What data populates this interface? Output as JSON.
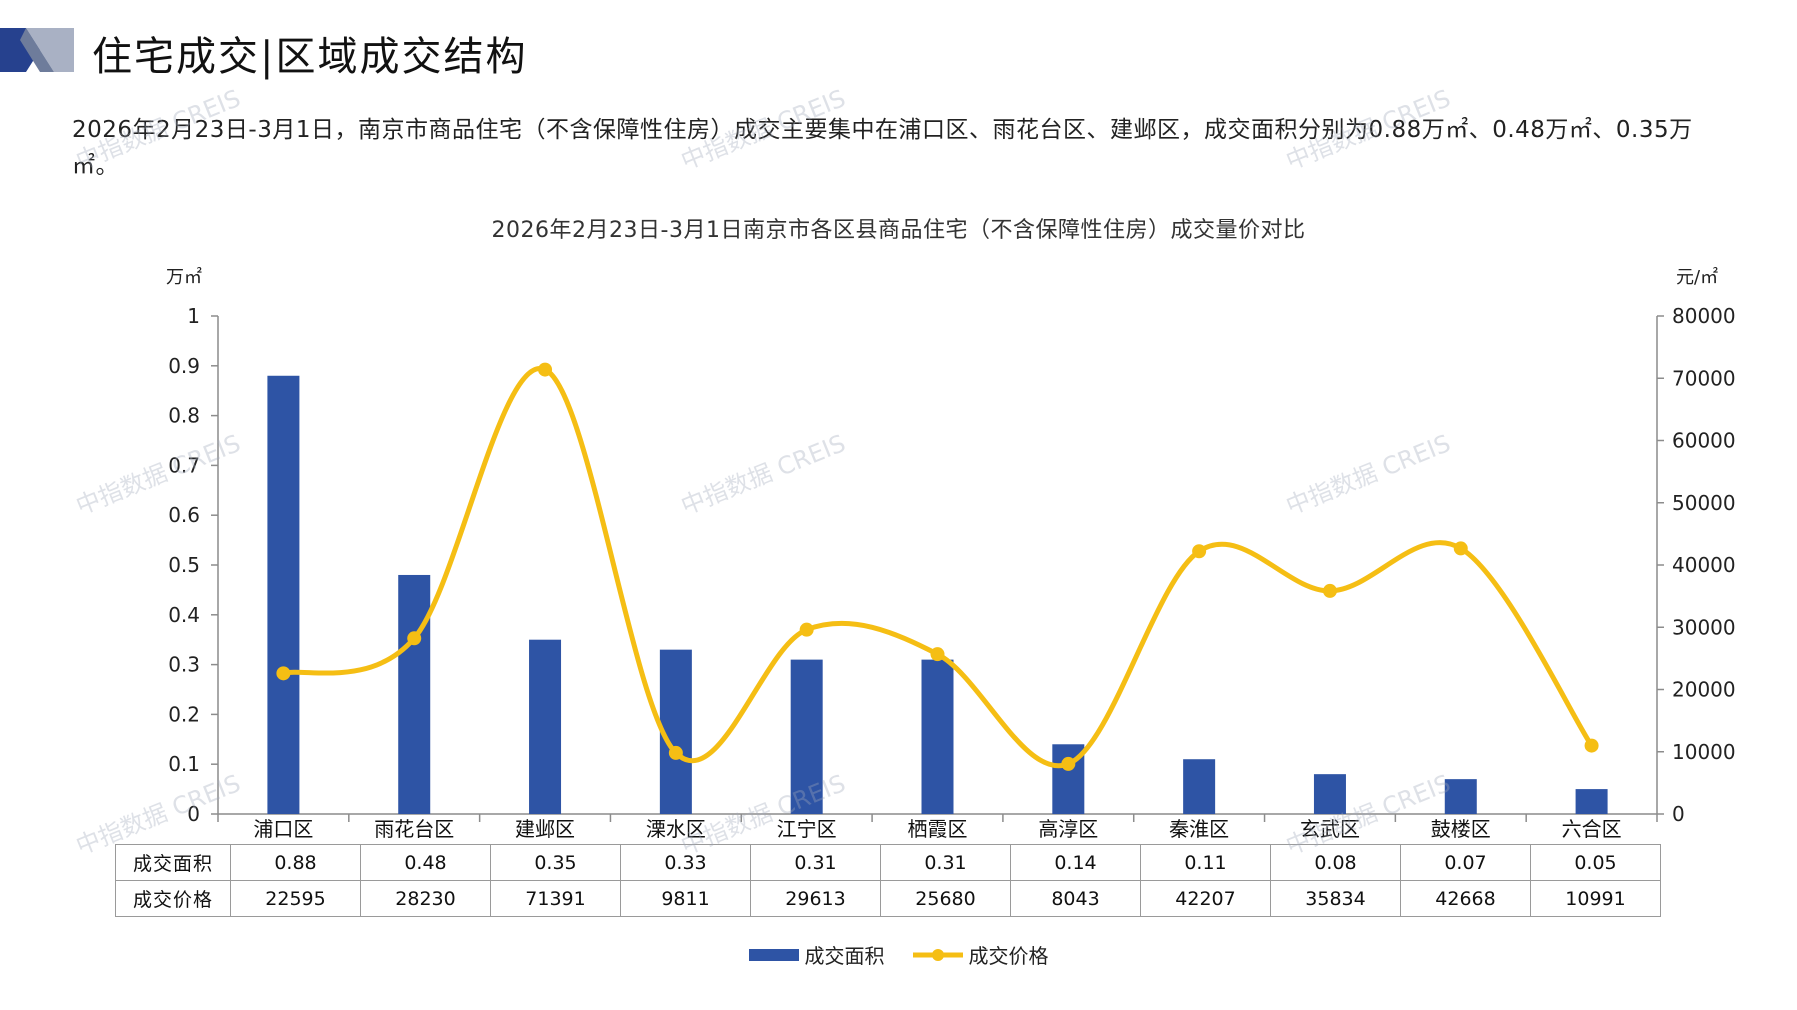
{
  "header": {
    "title": "住宅成交|区域成交结构"
  },
  "summary": "2026年2月23日-3月1日，南京市商品住宅（不含保障性住房）成交主要集中在浦口区、雨花台区、建邺区，成交面积分别为0.88万㎡、0.48万㎡、0.35万㎡。",
  "watermark": "中指数据 CREIS",
  "colors": {
    "bar": "#2E54A5",
    "line": "#F5BE14",
    "axis": "#8c8c8c",
    "logo_dark": "#26418E",
    "logo_light": "#A9B1C4"
  },
  "chart_data": {
    "type": "bar",
    "title": "2026年2月23日-3月1日南京市各区县商品住宅（不含保障性住房）成交量价对比",
    "categories": [
      "浦口区",
      "雨花台区",
      "建邺区",
      "溧水区",
      "江宁区",
      "栖霞区",
      "高淳区",
      "秦淮区",
      "玄武区",
      "鼓楼区",
      "六合区"
    ],
    "series": [
      {
        "name": "成交面积",
        "type": "bar",
        "axis": "left",
        "values": [
          0.88,
          0.48,
          0.35,
          0.33,
          0.31,
          0.31,
          0.14,
          0.11,
          0.08,
          0.07,
          0.05
        ]
      },
      {
        "name": "成交价格",
        "type": "line",
        "axis": "right",
        "values": [
          22595,
          28230,
          71391,
          9811,
          29613,
          25680,
          8043,
          42207,
          35834,
          42668,
          10991
        ]
      }
    ],
    "y_left": {
      "unit": "万㎡",
      "min": 0,
      "max": 1,
      "step": 0.1,
      "ticks": [
        "0",
        "0.1",
        "0.2",
        "0.3",
        "0.4",
        "0.5",
        "0.6",
        "0.7",
        "0.8",
        "0.9",
        "1"
      ]
    },
    "y_right": {
      "unit": "元/㎡",
      "min": 0,
      "max": 80000,
      "step": 10000,
      "ticks": [
        "0",
        "10000",
        "20000",
        "30000",
        "40000",
        "50000",
        "60000",
        "70000",
        "80000"
      ]
    },
    "table": {
      "rows": [
        {
          "label": "成交面积",
          "values": [
            "0.88",
            "0.48",
            "0.35",
            "0.33",
            "0.31",
            "0.31",
            "0.14",
            "0.11",
            "0.08",
            "0.07",
            "0.05"
          ]
        },
        {
          "label": "成交价格",
          "values": [
            "22595",
            "28230",
            "71391",
            "9811",
            "29613",
            "25680",
            "8043",
            "42207",
            "35834",
            "42668",
            "10991"
          ]
        }
      ]
    },
    "grid": false,
    "legend": "bottom-center"
  }
}
